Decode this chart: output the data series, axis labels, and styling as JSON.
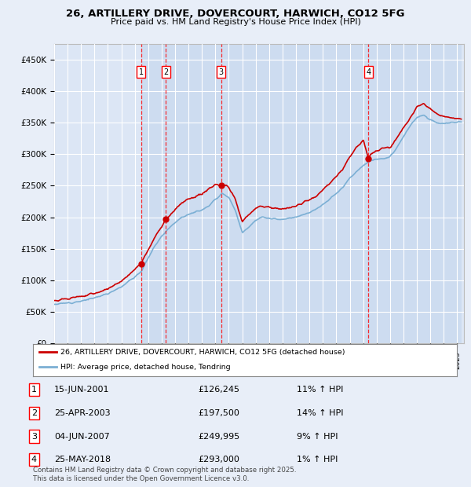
{
  "title": "26, ARTILLERY DRIVE, DOVERCOURT, HARWICH, CO12 5FG",
  "subtitle": "Price paid vs. HM Land Registry's House Price Index (HPI)",
  "ylabel_ticks": [
    "£0",
    "£50K",
    "£100K",
    "£150K",
    "£200K",
    "£250K",
    "£300K",
    "£350K",
    "£400K",
    "£450K"
  ],
  "ylim": [
    0,
    475000
  ],
  "xlim_start": 1995.0,
  "xlim_end": 2025.5,
  "background_color": "#e8eef8",
  "plot_bg_color": "#dce6f5",
  "grid_color": "#ffffff",
  "sale_color": "#cc0000",
  "hpi_color": "#7bafd4",
  "shade_color": "#c8d8ee",
  "sale_points": [
    {
      "date": 2001.46,
      "price": 126245,
      "label": "1"
    },
    {
      "date": 2003.32,
      "price": 197500,
      "label": "2"
    },
    {
      "date": 2007.42,
      "price": 249995,
      "label": "3"
    },
    {
      "date": 2018.4,
      "price": 293000,
      "label": "4"
    }
  ],
  "transactions": [
    {
      "num": "1",
      "date": "15-JUN-2001",
      "price": "£126,245",
      "hpi": "11% ↑ HPI"
    },
    {
      "num": "2",
      "date": "25-APR-2003",
      "price": "£197,500",
      "hpi": "14% ↑ HPI"
    },
    {
      "num": "3",
      "date": "04-JUN-2007",
      "price": "£249,995",
      "hpi": "9% ↑ HPI"
    },
    {
      "num": "4",
      "date": "25-MAY-2018",
      "price": "£293,000",
      "hpi": "1% ↑ HPI"
    }
  ],
  "legend_sale_label": "26, ARTILLERY DRIVE, DOVERCOURT, HARWICH, CO12 5FG (detached house)",
  "legend_hpi_label": "HPI: Average price, detached house, Tendring",
  "footer": "Contains HM Land Registry data © Crown copyright and database right 2025.\nThis data is licensed under the Open Government Licence v3.0.",
  "hpi_anchors": [
    [
      1995.0,
      62000
    ],
    [
      1996.0,
      64000
    ],
    [
      1997.0,
      67000
    ],
    [
      1998.0,
      72000
    ],
    [
      1999.0,
      79000
    ],
    [
      2000.0,
      90000
    ],
    [
      2001.0,
      105000
    ],
    [
      2001.5,
      115000
    ],
    [
      2002.0,
      135000
    ],
    [
      2002.5,
      155000
    ],
    [
      2003.0,
      170000
    ],
    [
      2003.5,
      182000
    ],
    [
      2004.0,
      192000
    ],
    [
      2004.5,
      200000
    ],
    [
      2005.0,
      205000
    ],
    [
      2005.5,
      208000
    ],
    [
      2006.0,
      212000
    ],
    [
      2006.5,
      218000
    ],
    [
      2007.0,
      228000
    ],
    [
      2007.5,
      238000
    ],
    [
      2008.0,
      232000
    ],
    [
      2008.5,
      210000
    ],
    [
      2009.0,
      175000
    ],
    [
      2009.5,
      185000
    ],
    [
      2010.0,
      195000
    ],
    [
      2010.5,
      200000
    ],
    [
      2011.0,
      198000
    ],
    [
      2011.5,
      197000
    ],
    [
      2012.0,
      196000
    ],
    [
      2012.5,
      198000
    ],
    [
      2013.0,
      200000
    ],
    [
      2013.5,
      204000
    ],
    [
      2014.0,
      208000
    ],
    [
      2014.5,
      213000
    ],
    [
      2015.0,
      220000
    ],
    [
      2015.5,
      228000
    ],
    [
      2016.0,
      238000
    ],
    [
      2016.5,
      248000
    ],
    [
      2017.0,
      262000
    ],
    [
      2017.5,
      272000
    ],
    [
      2018.0,
      282000
    ],
    [
      2018.5,
      290000
    ],
    [
      2019.0,
      292000
    ],
    [
      2019.5,
      293000
    ],
    [
      2020.0,
      295000
    ],
    [
      2020.5,
      310000
    ],
    [
      2021.0,
      328000
    ],
    [
      2021.5,
      345000
    ],
    [
      2022.0,
      358000
    ],
    [
      2022.5,
      362000
    ],
    [
      2023.0,
      355000
    ],
    [
      2023.5,
      350000
    ],
    [
      2024.0,
      348000
    ],
    [
      2024.5,
      350000
    ],
    [
      2025.3,
      352000
    ]
  ],
  "red_anchors": [
    [
      1995.0,
      68000
    ],
    [
      1996.0,
      71000
    ],
    [
      1997.0,
      74000
    ],
    [
      1998.0,
      79000
    ],
    [
      1999.0,
      86000
    ],
    [
      2000.0,
      99000
    ],
    [
      2001.0,
      116000
    ],
    [
      2001.46,
      126245
    ],
    [
      2002.0,
      148000
    ],
    [
      2002.5,
      170000
    ],
    [
      2003.0,
      185000
    ],
    [
      2003.32,
      197500
    ],
    [
      2003.5,
      200000
    ],
    [
      2004.0,
      212000
    ],
    [
      2004.5,
      222000
    ],
    [
      2005.0,
      228000
    ],
    [
      2005.5,
      232000
    ],
    [
      2006.0,
      237000
    ],
    [
      2006.5,
      244000
    ],
    [
      2007.0,
      252000
    ],
    [
      2007.42,
      249995
    ],
    [
      2007.5,
      253000
    ],
    [
      2008.0,
      247000
    ],
    [
      2008.5,
      228000
    ],
    [
      2009.0,
      192000
    ],
    [
      2009.5,
      204000
    ],
    [
      2010.0,
      214000
    ],
    [
      2010.5,
      218000
    ],
    [
      2011.0,
      216000
    ],
    [
      2011.5,
      214000
    ],
    [
      2012.0,
      213000
    ],
    [
      2012.5,
      215000
    ],
    [
      2013.0,
      218000
    ],
    [
      2013.5,
      223000
    ],
    [
      2014.0,
      228000
    ],
    [
      2014.5,
      234000
    ],
    [
      2015.0,
      243000
    ],
    [
      2015.5,
      253000
    ],
    [
      2016.0,
      265000
    ],
    [
      2016.5,
      278000
    ],
    [
      2017.0,
      296000
    ],
    [
      2017.5,
      310000
    ],
    [
      2018.0,
      322000
    ],
    [
      2018.4,
      293000
    ],
    [
      2018.5,
      298000
    ],
    [
      2019.0,
      305000
    ],
    [
      2019.5,
      310000
    ],
    [
      2020.0,
      310000
    ],
    [
      2020.5,
      325000
    ],
    [
      2021.0,
      342000
    ],
    [
      2021.5,
      358000
    ],
    [
      2022.0,
      375000
    ],
    [
      2022.5,
      380000
    ],
    [
      2023.0,
      372000
    ],
    [
      2023.5,
      365000
    ],
    [
      2024.0,
      360000
    ],
    [
      2024.5,
      358000
    ],
    [
      2025.3,
      355000
    ]
  ]
}
